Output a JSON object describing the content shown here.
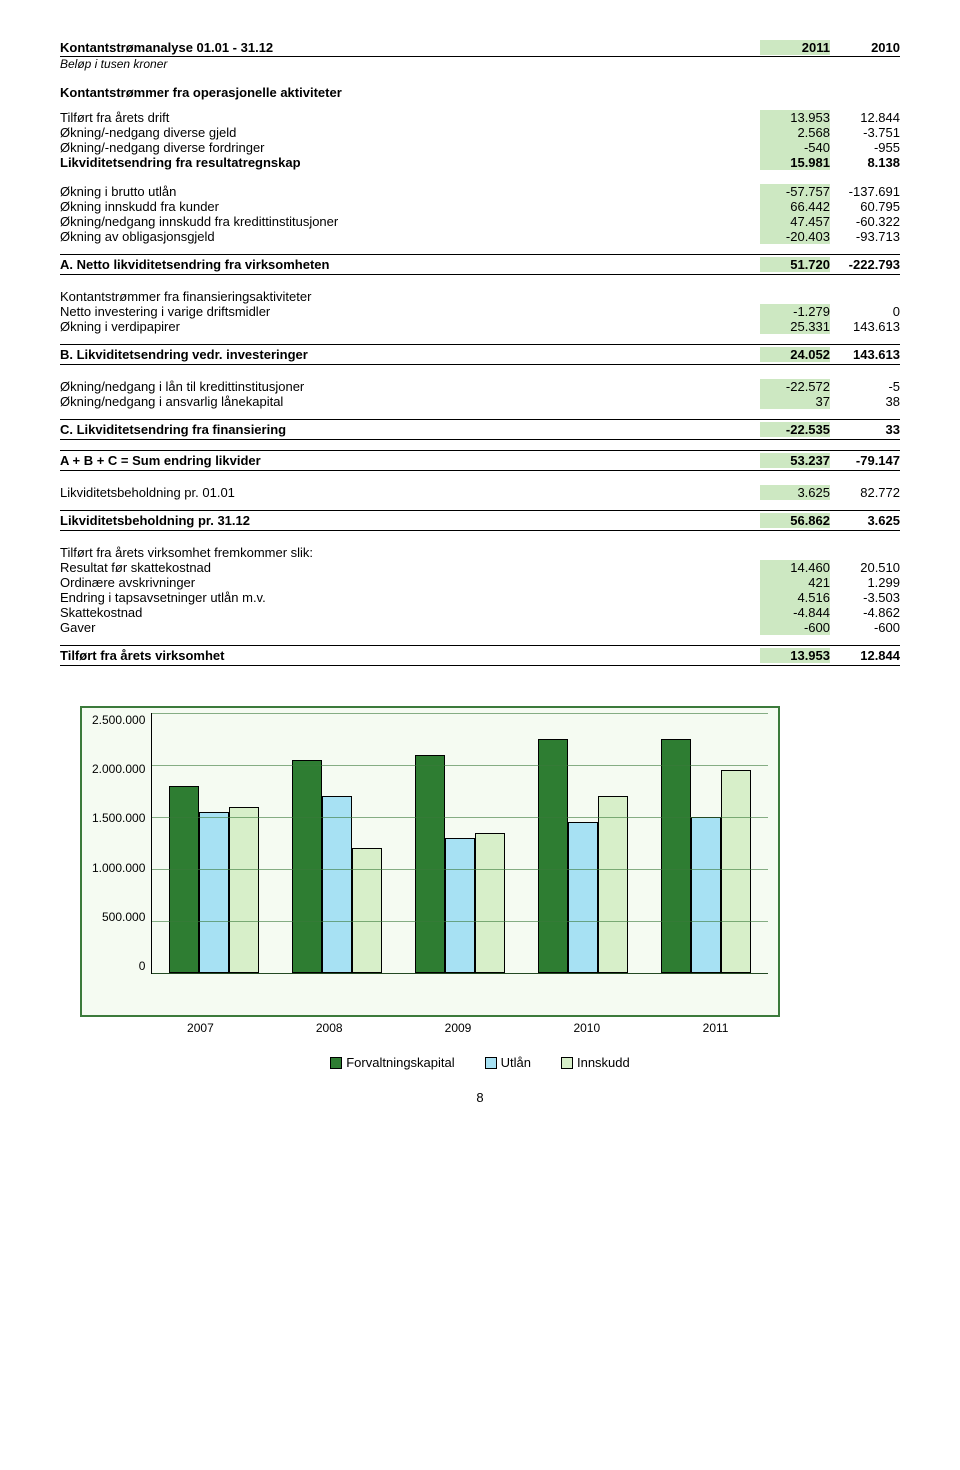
{
  "header": {
    "title": "Kontantstrømanalyse 01.01 - 31.12",
    "col_a": "2011",
    "col_b": "2010",
    "subtitle": "Beløp i tusen kroner"
  },
  "section1": {
    "heading": "Kontantstrømmer fra operasjonelle aktiviteter",
    "rows": [
      {
        "label": "Tilført fra årets drift",
        "a": "13.953",
        "b": "12.844"
      },
      {
        "label": "Økning/-nedgang diverse gjeld",
        "a": "2.568",
        "b": "-3.751"
      },
      {
        "label": "Økning/-nedgang diverse fordringer",
        "a": "-540",
        "b": "-955"
      }
    ],
    "sum": {
      "label": "Likviditetsendring fra resultatregnskap",
      "a": "15.981",
      "b": "8.138"
    }
  },
  "section2": {
    "rows": [
      {
        "label": "Økning i brutto utlån",
        "a": "-57.757",
        "b": "-137.691"
      },
      {
        "label": "Økning innskudd fra kunder",
        "a": "66.442",
        "b": "60.795"
      },
      {
        "label": "Økning/nedgang innskudd fra kredittinstitusjoner",
        "a": "47.457",
        "b": "-60.322"
      },
      {
        "label": "Økning av obligasjonsgjeld",
        "a": "-20.403",
        "b": "-93.713"
      }
    ]
  },
  "section_a": {
    "label": "A. Netto likviditetsendring fra virksomheten",
    "a": "51.720",
    "b": "-222.793"
  },
  "section3": {
    "heading": "Kontantstrømmer fra finansieringsaktiviteter",
    "rows": [
      {
        "label": "Netto investering i varige driftsmidler",
        "a": "-1.279",
        "b": "0"
      },
      {
        "label": "Økning i verdipapirer",
        "a": "25.331",
        "b": "143.613"
      }
    ]
  },
  "section_b": {
    "label": "B. Likviditetsendring vedr. investeringer",
    "a": "24.052",
    "b": "143.613"
  },
  "section4": {
    "rows": [
      {
        "label": "Økning/nedgang i lån til kredittinstitusjoner",
        "a": "-22.572",
        "b": "-5"
      },
      {
        "label": "Økning/nedgang i ansvarlig lånekapital",
        "a": "37",
        "b": "38"
      }
    ]
  },
  "section_c": {
    "label": "C. Likviditetsendring fra finansiering",
    "a": "-22.535",
    "b": "33"
  },
  "section_sum": {
    "label": "A + B + C = Sum endring likvider",
    "a": "53.237",
    "b": "-79.147"
  },
  "row_lb01": {
    "label": "Likviditetsbeholdning pr. 01.01",
    "a": "3.625",
    "b": "82.772"
  },
  "row_lb31": {
    "label": "Likviditetsbeholdning pr. 31.12",
    "a": "56.862",
    "b": "3.625"
  },
  "section5": {
    "heading": "Tilført fra årets virksomhet fremkommer slik:",
    "rows": [
      {
        "label": "Resultat før skattekostnad",
        "a": "14.460",
        "b": "20.510"
      },
      {
        "label": "Ordinære avskrivninger",
        "a": "421",
        "b": "1.299"
      },
      {
        "label": "Endring i tapsavsetninger utlån m.v.",
        "a": "4.516",
        "b": "-3.503"
      },
      {
        "label": "Skattekostnad",
        "a": "-4.844",
        "b": "-4.862"
      },
      {
        "label": "Gaver",
        "a": "-600",
        "b": "-600"
      }
    ]
  },
  "section_final": {
    "label": "Tilført fra årets virksomhet",
    "a": "13.953",
    "b": "12.844"
  },
  "chart": {
    "ymax": 2500,
    "yticks": [
      "2.500.000",
      "2.000.000",
      "1.500.000",
      "1.000.000",
      "500.000",
      "0"
    ],
    "categories": [
      "2007",
      "2008",
      "2009",
      "2010",
      "2011"
    ],
    "series": [
      {
        "name": "Forvaltningskapital",
        "color": "#2e7d32",
        "values": [
          1800,
          2050,
          2100,
          2250,
          2250
        ]
      },
      {
        "name": "Utlån",
        "color": "#a7e1f3",
        "values": [
          1550,
          1700,
          1300,
          1450,
          1500
        ]
      },
      {
        "name": "Innskudd",
        "color": "#d7efc9",
        "values": [
          1600,
          1200,
          1350,
          1700,
          1950
        ]
      }
    ],
    "legend": [
      {
        "label": "Forvaltningskapital",
        "color": "#2e7d32"
      },
      {
        "label": "Utlån",
        "color": "#a7e1f3"
      },
      {
        "label": "Innskudd",
        "color": "#d7efc9"
      }
    ],
    "border_color": "#3b7a3b",
    "background": "#f5fbf2"
  },
  "page_number": "8"
}
